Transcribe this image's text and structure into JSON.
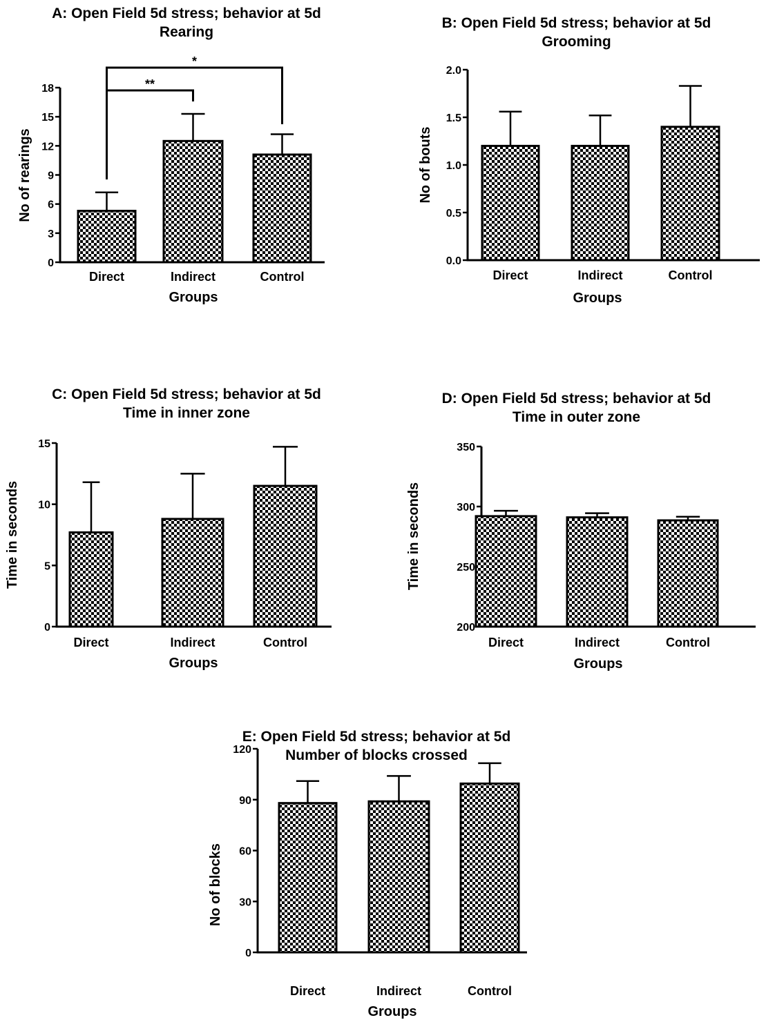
{
  "chart_data": [
    {
      "panel": "A",
      "type": "bar",
      "title": "A: Open Field 5d stress; behavior at 5d",
      "subtitle": "Rearing",
      "xlabel": "Groups",
      "ylabel": "No of rearings",
      "categories": [
        "Direct",
        "Indirect",
        "Control"
      ],
      "values": [
        5.3,
        12.5,
        11.1
      ],
      "error_upper": [
        7.2,
        15.3,
        13.2
      ],
      "ylim": [
        0,
        18
      ],
      "yticks": [
        0,
        3,
        6,
        9,
        12,
        15,
        18
      ],
      "grid": false,
      "fill_pattern": "checkerboard",
      "significance": [
        {
          "from": "Direct",
          "to": "Indirect",
          "label": "**"
        },
        {
          "from": "Direct",
          "to": "Control",
          "label": "*"
        }
      ]
    },
    {
      "panel": "B",
      "type": "bar",
      "title": "B: Open Field 5d stress; behavior at 5d",
      "subtitle": "Grooming",
      "xlabel": "Groups",
      "ylabel": "No of bouts",
      "categories": [
        "Direct",
        "Indirect",
        "Control"
      ],
      "values": [
        1.2,
        1.2,
        1.4
      ],
      "error_upper": [
        1.56,
        1.52,
        1.83
      ],
      "ylim": [
        0,
        2.0
      ],
      "yticks": [
        "0.0",
        "0.5",
        "1.0",
        "1.5",
        "2.0"
      ],
      "grid": false,
      "fill_pattern": "checkerboard"
    },
    {
      "panel": "C",
      "type": "bar",
      "title": "C: Open Field 5d stress; behavior at 5d",
      "subtitle": "Time in inner zone",
      "xlabel": "Groups",
      "ylabel": "Time in seconds",
      "categories": [
        "Direct",
        "Indirect",
        "Control"
      ],
      "values": [
        7.7,
        8.8,
        11.5
      ],
      "error_upper": [
        11.8,
        12.5,
        14.7
      ],
      "ylim": [
        0,
        15
      ],
      "yticks": [
        0,
        5,
        10,
        15
      ],
      "grid": false,
      "fill_pattern": "checkerboard"
    },
    {
      "panel": "D",
      "type": "bar",
      "title": "D: Open Field 5d stress; behavior at 5d",
      "subtitle": "Time in outer zone",
      "xlabel": "Groups",
      "ylabel": "Time in seconds",
      "categories": [
        "Direct",
        "Indirect",
        "Control"
      ],
      "values": [
        292,
        291,
        288.5
      ],
      "error_upper": [
        296.5,
        294.5,
        291.5
      ],
      "ylim": [
        200,
        350
      ],
      "yticks": [
        200,
        250,
        300,
        350
      ],
      "grid": false,
      "fill_pattern": "checkerboard"
    },
    {
      "panel": "E",
      "type": "bar",
      "title": "E: Open Field 5d stress; behavior at 5d",
      "subtitle": "Number of blocks crossed",
      "xlabel": "Groups",
      "ylabel": "No of blocks",
      "categories": [
        "Direct",
        "Indirect",
        "Control"
      ],
      "values": [
        88,
        89,
        99.5
      ],
      "error_upper": [
        101,
        104,
        111.5
      ],
      "ylim": [
        0,
        120
      ],
      "yticks": [
        0,
        30,
        60,
        90,
        120
      ],
      "grid": false,
      "fill_pattern": "checkerboard"
    }
  ]
}
